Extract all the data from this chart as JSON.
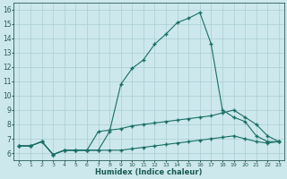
{
  "xlabel": "Humidex (Indice chaleur)",
  "bg_color": "#cce8ec",
  "grid_color": "#aacdd4",
  "line_color": "#1a6e65",
  "x_ticks": [
    0,
    1,
    2,
    3,
    4,
    5,
    6,
    7,
    8,
    9,
    10,
    11,
    12,
    13,
    14,
    15,
    16,
    17,
    18,
    19,
    20,
    21,
    22,
    23
  ],
  "ylim": [
    5.5,
    16.5
  ],
  "xlim": [
    -0.5,
    23.5
  ],
  "line1_x": [
    0,
    1,
    2,
    3,
    4,
    5,
    6,
    7,
    8,
    9,
    10,
    11,
    12,
    13,
    14,
    15,
    16,
    17,
    18,
    19,
    20,
    21,
    22,
    23
  ],
  "line1_y": [
    6.5,
    6.5,
    6.8,
    5.9,
    6.2,
    6.2,
    6.2,
    6.2,
    7.5,
    10.8,
    11.9,
    12.5,
    13.6,
    14.3,
    15.1,
    15.4,
    15.8,
    13.6,
    9.0,
    8.5,
    8.2,
    7.2,
    6.8,
    6.8
  ],
  "line2_x": [
    0,
    1,
    2,
    3,
    4,
    5,
    6,
    7,
    8,
    9,
    10,
    11,
    12,
    13,
    14,
    15,
    16,
    17,
    18,
    19,
    20,
    21,
    22,
    23
  ],
  "line2_y": [
    6.5,
    6.5,
    6.8,
    5.9,
    6.2,
    6.2,
    6.2,
    7.5,
    7.6,
    7.7,
    7.9,
    8.0,
    8.1,
    8.2,
    8.3,
    8.4,
    8.5,
    8.6,
    8.8,
    9.0,
    8.5,
    8.0,
    7.2,
    6.8
  ],
  "line3_x": [
    0,
    1,
    2,
    3,
    4,
    5,
    6,
    7,
    8,
    9,
    10,
    11,
    12,
    13,
    14,
    15,
    16,
    17,
    18,
    19,
    20,
    21,
    22,
    23
  ],
  "line3_y": [
    6.5,
    6.5,
    6.8,
    5.9,
    6.2,
    6.2,
    6.2,
    6.2,
    6.2,
    6.2,
    6.3,
    6.4,
    6.5,
    6.6,
    6.7,
    6.8,
    6.9,
    7.0,
    7.1,
    7.2,
    7.0,
    6.8,
    6.7,
    6.8
  ]
}
